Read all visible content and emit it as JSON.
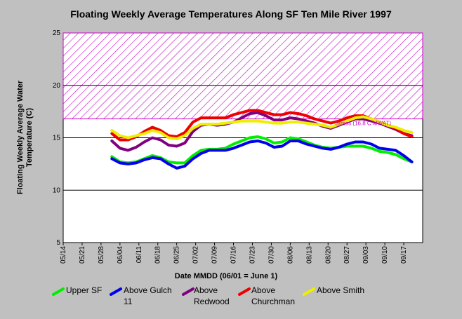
{
  "chart_data": {
    "type": "line",
    "title": "Floating Weekly Average Temperatures Along SF Ten Mile River 1997",
    "xlabel": "Date MMDD (06/01 = June 1)",
    "ylabel_lines": [
      "Floating Weekly Average Water",
      "Temperature (C)"
    ],
    "ylim": [
      5,
      25
    ],
    "yticks": [
      5,
      10,
      15,
      20,
      25
    ],
    "x_tick_labels": [
      "05/14",
      "05/21",
      "05/28",
      "06/04",
      "06/11",
      "06/18",
      "06/25",
      "07/02",
      "07/09",
      "07/16",
      "07/23",
      "07/30",
      "08/06",
      "08/13",
      "08/20",
      "08/27",
      "09/03",
      "09/10",
      "09/17"
    ],
    "x_tick_days": [
      -18,
      -11,
      -4,
      3,
      10,
      17,
      24,
      31,
      38,
      45,
      52,
      59,
      66,
      73,
      80,
      87,
      94,
      101,
      108
    ],
    "xlim": [
      -18,
      115
    ],
    "grid_y": true,
    "stress_zone": {
      "from": 16.8,
      "to": 25,
      "label": "Stress (16.8 C MWAT)",
      "color": "#cc00cc"
    },
    "x_days": [
      0,
      3,
      6,
      9,
      12,
      15,
      18,
      21,
      24,
      27,
      30,
      33,
      36,
      39,
      42,
      45,
      48,
      51,
      54,
      57,
      60,
      63,
      66,
      69,
      72,
      75,
      78,
      81,
      84,
      87,
      90,
      93,
      96,
      99,
      102,
      105,
      108,
      111
    ],
    "series": [
      {
        "name": "Upper SF",
        "color": "#00ee00",
        "values": [
          13.2,
          12.7,
          12.6,
          12.7,
          13.0,
          13.3,
          13.1,
          12.7,
          12.6,
          12.6,
          13.3,
          13.8,
          13.9,
          13.9,
          14.0,
          14.4,
          14.7,
          15.0,
          15.1,
          14.9,
          14.5,
          14.6,
          15.0,
          14.9,
          14.6,
          14.3,
          14.1,
          14.0,
          14.1,
          14.2,
          14.2,
          14.2,
          14.0,
          13.7,
          13.6,
          13.4,
          13.0,
          12.7
        ]
      },
      {
        "name": "Above Gulch 11",
        "color": "#0000ee",
        "values": [
          13.0,
          12.6,
          12.5,
          12.6,
          12.9,
          13.1,
          13.0,
          12.5,
          12.1,
          12.3,
          13.0,
          13.5,
          13.8,
          13.8,
          13.8,
          14.0,
          14.3,
          14.6,
          14.7,
          14.5,
          14.1,
          14.2,
          14.7,
          14.7,
          14.4,
          14.2,
          14.0,
          13.9,
          14.1,
          14.4,
          14.6,
          14.6,
          14.4,
          14.0,
          13.9,
          13.8,
          13.3,
          12.7
        ]
      },
      {
        "name": "Above Redwood",
        "color": "#800080",
        "values": [
          14.7,
          14.0,
          13.8,
          14.1,
          14.6,
          15.0,
          14.8,
          14.3,
          14.2,
          14.5,
          15.6,
          16.2,
          16.3,
          16.2,
          16.3,
          16.5,
          16.9,
          17.3,
          17.4,
          17.1,
          16.7,
          16.7,
          16.9,
          16.8,
          16.6,
          16.4,
          16.1,
          15.9,
          16.2,
          16.5,
          16.8,
          16.8,
          16.6,
          16.4,
          16.1,
          15.8,
          15.4,
          15.2
        ]
      },
      {
        "name": "Above Churchman",
        "color": "#ee0000",
        "values": [
          15.4,
          14.8,
          14.8,
          15.1,
          15.6,
          16.0,
          15.7,
          15.2,
          15.1,
          15.5,
          16.5,
          16.9,
          16.9,
          16.9,
          16.9,
          17.2,
          17.4,
          17.6,
          17.6,
          17.4,
          17.2,
          17.2,
          17.4,
          17.3,
          17.1,
          16.8,
          16.6,
          16.4,
          16.6,
          16.9,
          17.1,
          17.1,
          16.8,
          16.5,
          16.2,
          15.9,
          15.4,
          15.1
        ]
      },
      {
        "name": "Above Smith",
        "color": "#eeee00",
        "values": [
          15.7,
          15.2,
          15.0,
          15.2,
          15.4,
          15.7,
          15.5,
          15.0,
          14.9,
          15.2,
          15.9,
          16.3,
          16.3,
          16.3,
          16.4,
          16.5,
          16.6,
          16.6,
          16.6,
          16.5,
          16.4,
          16.4,
          16.5,
          16.5,
          16.4,
          16.3,
          16.2,
          16.0,
          16.3,
          16.6,
          16.9,
          17.0,
          16.8,
          16.5,
          16.2,
          16.0,
          15.7,
          15.5
        ]
      }
    ],
    "legend": [
      {
        "label": "Upper SF",
        "color": "#00ee00"
      },
      {
        "label": "Above Gulch 11",
        "line1": "Above Gulch",
        "line2": "11",
        "color": "#0000ee"
      },
      {
        "label": "Above Redwood",
        "line1": "Above",
        "line2": "Redwood",
        "color": "#800080"
      },
      {
        "label": "Above Churchman",
        "line1": "Above",
        "line2": "Churchman",
        "color": "#ee0000"
      },
      {
        "label": "Above Smith",
        "color": "#eeee00"
      }
    ]
  }
}
